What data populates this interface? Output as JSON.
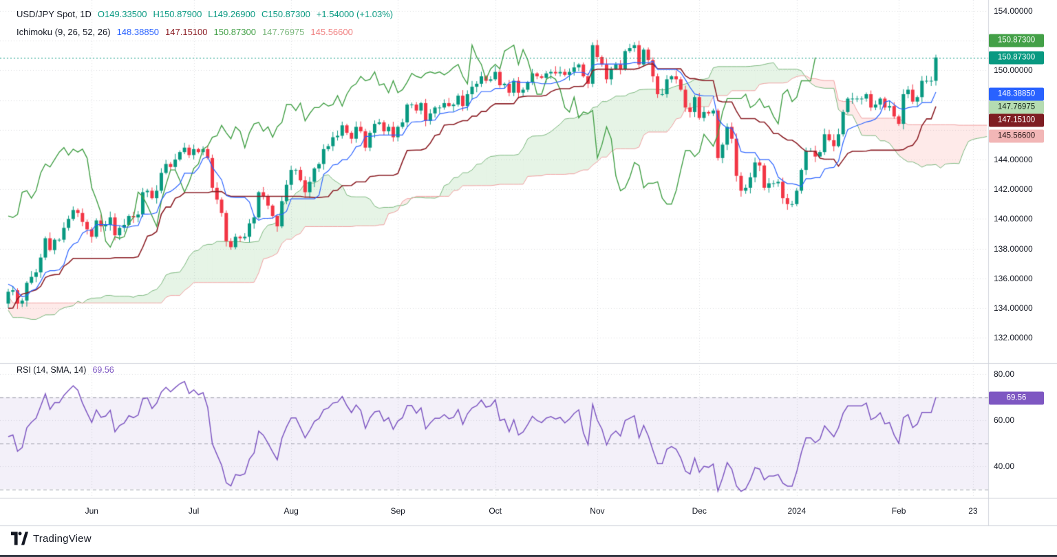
{
  "legend_main": [
    {
      "name": "symbol-title",
      "text": "USD/JPY Spot, 1D",
      "color": "#131722"
    },
    {
      "name": "ohlc-open",
      "text": "O149.33500",
      "color": "#089981"
    },
    {
      "name": "ohlc-high",
      "text": "H150.87900",
      "color": "#089981"
    },
    {
      "name": "ohlc-low",
      "text": "L149.26900",
      "color": "#089981"
    },
    {
      "name": "ohlc-close",
      "text": "C150.87300",
      "color": "#089981"
    },
    {
      "name": "ohlc-change",
      "text": "+1.54000 (+1.03%)",
      "color": "#089981"
    }
  ],
  "legend_ichimoku": [
    {
      "name": "ichimoku-label",
      "text": "Ichimoku (9, 26, 52, 26)",
      "color": "#131722"
    },
    {
      "name": "ichimoku-tenkan-value",
      "text": "148.38850",
      "color": "#2962ff"
    },
    {
      "name": "ichimoku-kijun-value",
      "text": "147.15100",
      "color": "#8c1f26"
    },
    {
      "name": "ichimoku-chikou-value",
      "text": "150.87300",
      "color": "#43a047"
    },
    {
      "name": "ichimoku-senkou-a-value",
      "text": "147.76975",
      "color": "#7cb87e"
    },
    {
      "name": "ichimoku-senkou-b-value",
      "text": "145.56600",
      "color": "#f08080"
    }
  ],
  "legend_rsi": [
    {
      "name": "rsi-label",
      "text": "RSI (14, SMA, 14)",
      "color": "#131722"
    },
    {
      "name": "rsi-value",
      "text": "69.56",
      "color": "#7e57c2"
    }
  ],
  "badges": [
    {
      "name": "chikou-badge",
      "text": "150.87300",
      "value": 150.873,
      "bg": "#43a047",
      "fg": "#ffffff",
      "dy": -25
    },
    {
      "name": "price-badge",
      "text": "150.87300",
      "value": 150.873,
      "bg": "#089981",
      "fg": "#ffffff",
      "dy": 0
    },
    {
      "name": "tenkan-badge",
      "text": "148.38850",
      "value": 148.3885,
      "bg": "#2962ff",
      "fg": "#ffffff",
      "dy": 0
    },
    {
      "name": "senkou-a-badge",
      "text": "147.76975",
      "value": 147.76975,
      "bg": "#b5dcb2",
      "fg": "#15261a",
      "dy": 0
    },
    {
      "name": "kijun-badge",
      "text": "147.15100",
      "value": 147.151,
      "bg": "#7e1d22",
      "fg": "#ffffff",
      "dy": 0
    },
    {
      "name": "senkou-b-badge",
      "text": "145.56600",
      "value": 145.566,
      "bg": "#f2b6b6",
      "fg": "#261515",
      "dy": 0
    }
  ],
  "rsi_badge": {
    "name": "rsi-badge",
    "text": "69.56",
    "value": 69.56,
    "bg": "#7e57c2",
    "fg": "#ffffff"
  },
  "footer": {
    "brand": "TradingView"
  },
  "colors": {
    "up": "#089981",
    "down": "#f23645",
    "tenkan": "#2962ff",
    "kijun": "#8c1f26",
    "chikou": "#43a047",
    "senkou_a": "#7cb87e",
    "senkou_b": "#f0a0a0",
    "cloud_up": "rgba(76,175,80,0.14)",
    "cloud_down": "rgba(244,67,54,0.11)",
    "price_line": "#089981",
    "rsi": "#7e57c2",
    "rsi_band": "rgba(126,87,194,0.09)",
    "rsi_level": "rgba(90,96,110,0.6)",
    "grid": "rgba(130,136,150,0.28)",
    "separator": "#d1d4dc",
    "axis_text": "#131722"
  },
  "chart_data": {
    "type": "candlestick",
    "symbol": "USD/JPY Spot",
    "interval": "1D",
    "title": "USD/JPY Spot, 1D with Ichimoku (9, 26, 52, 26) and RSI (14, SMA, 14)",
    "last": {
      "open": 149.335,
      "high": 150.879,
      "low": 149.269,
      "close": 150.873,
      "change": 1.54,
      "change_pct": 1.03
    },
    "last_close": 150.873,
    "ichimoku": {
      "params": [
        9,
        26,
        52,
        26
      ],
      "tenkan": 148.3885,
      "kijun": 147.151,
      "chikou": 150.873,
      "senkou_a": 147.76975,
      "senkou_b": 145.566
    },
    "rsi": {
      "period": 14,
      "sma": 14,
      "last": 69.56,
      "levels": [
        70,
        50,
        30
      ]
    },
    "ylim": [
      130.3,
      154.74
    ],
    "rsi_ylim": [
      26.3,
      84.8
    ],
    "x_ticks": [
      {
        "text": "Jun",
        "bar": 18
      },
      {
        "text": "Jul",
        "bar": 40
      },
      {
        "text": "Aug",
        "bar": 61
      },
      {
        "text": "Sep",
        "bar": 84
      },
      {
        "text": "Oct",
        "bar": 105
      },
      {
        "text": "Nov",
        "bar": 127
      },
      {
        "text": "Dec",
        "bar": 149
      },
      {
        "text": "2024",
        "bar": 170
      },
      {
        "text": "Feb",
        "bar": 192
      },
      {
        "text": "23",
        "bar": 208
      }
    ],
    "y_ticks": [
      {
        "text": "154.00000",
        "value": 154
      },
      {
        "text": "150.00000",
        "value": 150
      },
      {
        "text": "144.00000",
        "value": 144
      },
      {
        "text": "142.00000",
        "value": 142
      },
      {
        "text": "140.00000",
        "value": 140
      },
      {
        "text": "138.00000",
        "value": 138
      },
      {
        "text": "136.00000",
        "value": 136
      },
      {
        "text": "134.00000",
        "value": 134
      },
      {
        "text": "132.00000",
        "value": 132
      }
    ],
    "rsi_ticks": [
      {
        "text": "80.00",
        "value": 80
      },
      {
        "text": "60.00",
        "value": 60
      },
      {
        "text": "40.00",
        "value": 40
      }
    ],
    "pre_closes": [
      136.4,
      136.2,
      136.1,
      136.2,
      136.9,
      136.8,
      137.3,
      136.8,
      136.1,
      135.8,
      135.9,
      137.7,
      137.4,
      137.3,
      136.1,
      134.0,
      133.2,
      132.6,
      133.3,
      133.8,
      132.8,
      132.5,
      132.9,
      132.8,
      131.8,
      130.9,
      132.2,
      132.7,
      133.0,
      133.4,
      133.3,
      134.0,
      134.5,
      134.3,
      133.5,
      133.7,
      134.4,
      134.8,
      135.1,
      136.3,
      136.5,
      137.0,
      136.8,
      136.2,
      135.3,
      134.6,
      134.2,
      134.4,
      134.3,
      134.3
    ],
    "closes": [
      135.1,
      135.2,
      134.3,
      134.5,
      135.7,
      136.1,
      136.4,
      137.4,
      138.7,
      137.9,
      138.6,
      138.6,
      139.4,
      140.0,
      140.6,
      140.4,
      139.8,
      139.3,
      138.8,
      139.9,
      139.5,
      139.6,
      140.1,
      138.9,
      139.4,
      139.6,
      140.2,
      140.1,
      140.3,
      141.8,
      141.9,
      141.4,
      141.9,
      143.1,
      143.7,
      143.5,
      144.0,
      144.5,
      144.8,
      144.3,
      144.7,
      144.5,
      144.7,
      144.1,
      142.1,
      141.3,
      140.4,
      138.5,
      138.1,
      138.8,
      138.7,
      138.8,
      139.7,
      140.1,
      141.8,
      141.5,
      140.9,
      140.2,
      139.5,
      141.2,
      142.3,
      143.3,
      143.3,
      142.6,
      141.8,
      142.5,
      143.4,
      143.7,
      144.7,
      144.9,
      145.5,
      145.6,
      146.3,
      145.8,
      145.4,
      146.2,
      145.9,
      144.8,
      145.8,
      146.4,
      146.5,
      145.9,
      146.2,
      145.5,
      146.2,
      146.5,
      147.7,
      147.7,
      147.3,
      147.8,
      146.6,
      147.1,
      147.5,
      147.5,
      147.8,
      147.6,
      147.7,
      148.3,
      147.6,
      148.4,
      148.9,
      149.1,
      149.6,
      149.3,
      149.4,
      149.9,
      149.0,
      149.1,
      148.5,
      149.3,
      148.5,
      148.7,
      149.2,
      149.8,
      149.6,
      149.5,
      149.8,
      149.9,
      149.8,
      149.9,
      149.7,
      149.9,
      150.2,
      150.4,
      149.6,
      149.1,
      151.7,
      150.9,
      150.4,
      149.4,
      150.1,
      150.4,
      150.1,
      151.3,
      151.5,
      151.7,
      150.4,
      151.4,
      150.7,
      149.6,
      148.4,
      148.4,
      149.4,
      149.6,
      149.4,
      148.7,
      147.5,
      147.2,
      148.2,
      146.8,
      147.2,
      147.1,
      147.3,
      144.1,
      145.0,
      146.2,
      145.4,
      142.9,
      141.9,
      142.1,
      142.8,
      143.8,
      143.6,
      142.1,
      142.4,
      142.4,
      142.5,
      141.4,
      141.0,
      141.0,
      141.9,
      143.3,
      144.6,
      144.6,
      144.2,
      144.5,
      145.7,
      145.3,
      144.9,
      145.7,
      147.2,
      148.1,
      148.1,
      148.1,
      148.1,
      148.4,
      147.5,
      147.7,
      148.1,
      147.5,
      147.6,
      146.9,
      146.4,
      148.4,
      148.7,
      147.9,
      148.2,
      149.3,
      149.3,
      149.3,
      150.87
    ]
  }
}
